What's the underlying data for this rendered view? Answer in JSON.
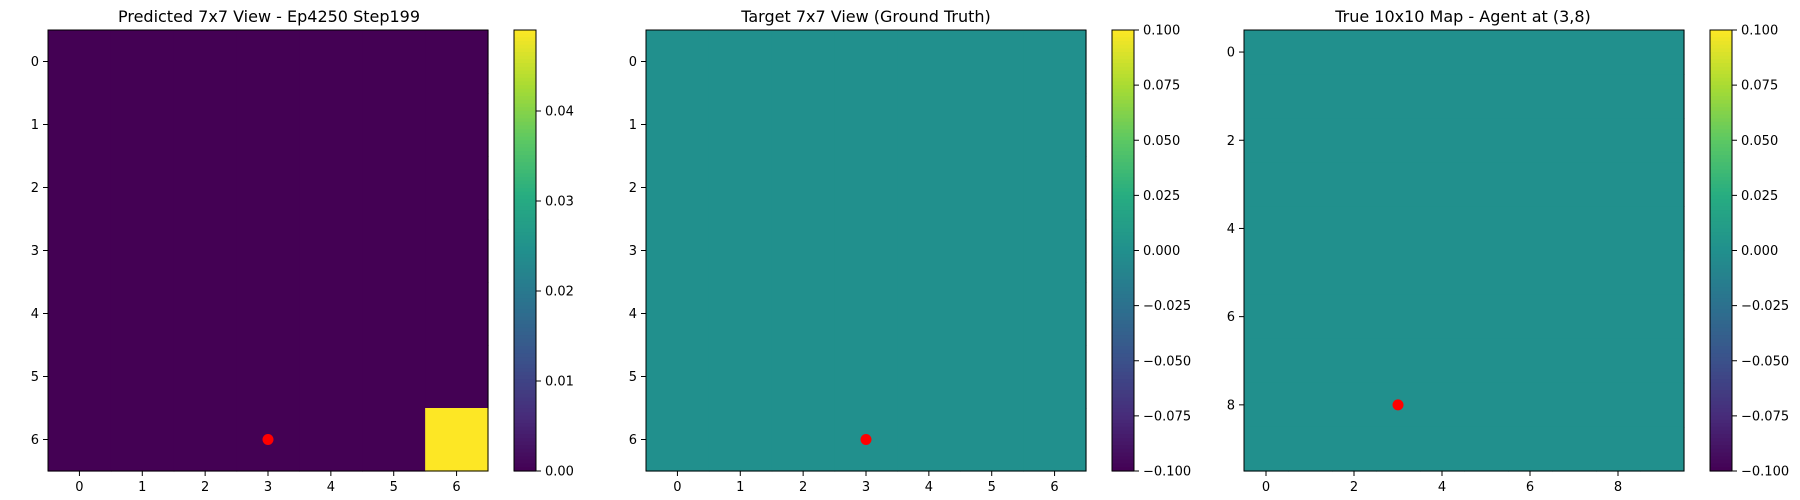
{
  "figure": {
    "background": "#ffffff",
    "colormap": "viridis",
    "marker_color": "#ff0000"
  },
  "chart_data": [
    {
      "type": "heatmap",
      "title": "Predicted 7x7 View - Ep4250 Step199",
      "grid_size": 7,
      "x_ticks": [
        "0",
        "1",
        "2",
        "3",
        "4",
        "5",
        "6"
      ],
      "y_ticks": [
        "0",
        "1",
        "2",
        "3",
        "4",
        "5",
        "6"
      ],
      "x_tick_values": [
        0,
        1,
        2,
        3,
        4,
        5,
        6
      ],
      "y_tick_values": [
        0,
        1,
        2,
        3,
        4,
        5,
        6
      ],
      "values": [
        [
          0,
          0,
          0,
          0,
          0,
          0,
          0
        ],
        [
          0,
          0,
          0,
          0,
          0,
          0,
          0
        ],
        [
          0,
          0,
          0,
          0,
          0,
          0,
          0
        ],
        [
          0,
          0,
          0,
          0,
          0,
          0,
          0
        ],
        [
          0,
          0,
          0,
          0,
          0,
          0,
          0
        ],
        [
          0,
          0,
          0,
          0,
          0,
          0,
          0
        ],
        [
          0,
          0,
          0,
          0,
          0,
          0,
          0.049
        ]
      ],
      "vmin": 0.0,
      "vmax": 0.049,
      "colorbar_ticks": [
        "0.00",
        "0.01",
        "0.02",
        "0.03",
        "0.04"
      ],
      "colorbar_tick_values": [
        0.0,
        0.01,
        0.02,
        0.03,
        0.04
      ],
      "marker": {
        "x": 3,
        "y": 6,
        "color": "#ff0000"
      }
    },
    {
      "type": "heatmap",
      "title": "Target 7x7 View (Ground Truth)",
      "grid_size": 7,
      "x_ticks": [
        "0",
        "1",
        "2",
        "3",
        "4",
        "5",
        "6"
      ],
      "y_ticks": [
        "0",
        "1",
        "2",
        "3",
        "4",
        "5",
        "6"
      ],
      "x_tick_values": [
        0,
        1,
        2,
        3,
        4,
        5,
        6
      ],
      "y_tick_values": [
        0,
        1,
        2,
        3,
        4,
        5,
        6
      ],
      "values": [
        [
          0,
          0,
          0,
          0,
          0,
          0,
          0
        ],
        [
          0,
          0,
          0,
          0,
          0,
          0,
          0
        ],
        [
          0,
          0,
          0,
          0,
          0,
          0,
          0
        ],
        [
          0,
          0,
          0,
          0,
          0,
          0,
          0
        ],
        [
          0,
          0,
          0,
          0,
          0,
          0,
          0
        ],
        [
          0,
          0,
          0,
          0,
          0,
          0,
          0
        ],
        [
          0,
          0,
          0,
          0,
          0,
          0,
          0
        ]
      ],
      "vmin": -0.1,
      "vmax": 0.1,
      "colorbar_ticks": [
        "0.100",
        "0.075",
        "0.050",
        "0.025",
        "0.000",
        "−0.025",
        "−0.050",
        "−0.075",
        "−0.100"
      ],
      "colorbar_tick_values": [
        0.1,
        0.075,
        0.05,
        0.025,
        0.0,
        -0.025,
        -0.05,
        -0.075,
        -0.1
      ],
      "marker": {
        "x": 3,
        "y": 6,
        "color": "#ff0000"
      }
    },
    {
      "type": "heatmap",
      "title": "True 10x10 Map - Agent at (3,8)",
      "grid_size": 10,
      "x_ticks": [
        "0",
        "2",
        "4",
        "6",
        "8"
      ],
      "y_ticks": [
        "0",
        "2",
        "4",
        "6",
        "8"
      ],
      "x_tick_values": [
        0,
        2,
        4,
        6,
        8
      ],
      "y_tick_values": [
        0,
        2,
        4,
        6,
        8
      ],
      "values": [
        [
          0,
          0,
          0,
          0,
          0,
          0,
          0,
          0,
          0,
          0
        ],
        [
          0,
          0,
          0,
          0,
          0,
          0,
          0,
          0,
          0,
          0
        ],
        [
          0,
          0,
          0,
          0,
          0,
          0,
          0,
          0,
          0,
          0
        ],
        [
          0,
          0,
          0,
          0,
          0,
          0,
          0,
          0,
          0,
          0
        ],
        [
          0,
          0,
          0,
          0,
          0,
          0,
          0,
          0,
          0,
          0
        ],
        [
          0,
          0,
          0,
          0,
          0,
          0,
          0,
          0,
          0,
          0
        ],
        [
          0,
          0,
          0,
          0,
          0,
          0,
          0,
          0,
          0,
          0
        ],
        [
          0,
          0,
          0,
          0,
          0,
          0,
          0,
          0,
          0,
          0
        ],
        [
          0,
          0,
          0,
          0,
          0,
          0,
          0,
          0,
          0,
          0
        ],
        [
          0,
          0,
          0,
          0,
          0,
          0,
          0,
          0,
          0,
          0
        ]
      ],
      "vmin": -0.1,
      "vmax": 0.1,
      "colorbar_ticks": [
        "0.100",
        "0.075",
        "0.050",
        "0.025",
        "0.000",
        "−0.025",
        "−0.050",
        "−0.075",
        "−0.100"
      ],
      "colorbar_tick_values": [
        0.1,
        0.075,
        0.05,
        0.025,
        0.0,
        -0.025,
        -0.05,
        -0.075,
        -0.1
      ],
      "marker": {
        "x": 3,
        "y": 8,
        "color": "#ff0000"
      }
    }
  ]
}
